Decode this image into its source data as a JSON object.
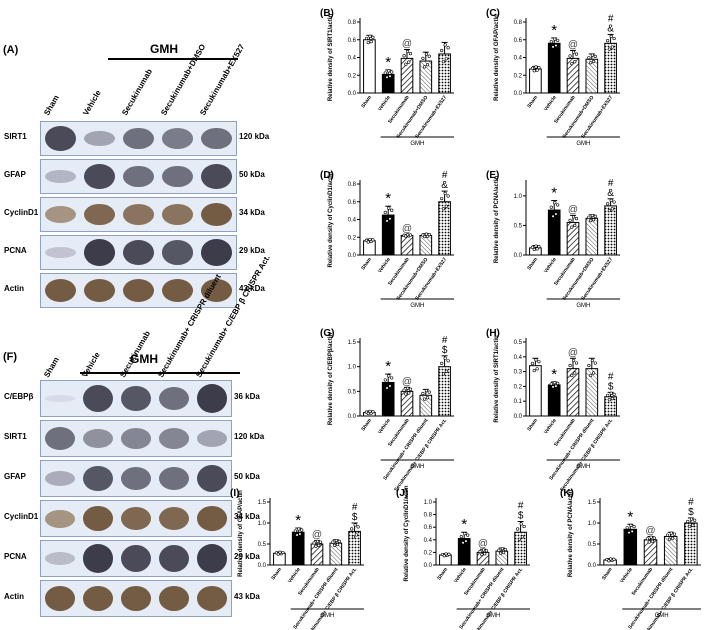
{
  "top": {
    "panel_A": "(A)",
    "gmh": "GMH",
    "lanes": [
      "Sham",
      "Vehicle",
      "Secukinumab",
      "Secukinumab+DMSO",
      "Secukinumab+EX527"
    ],
    "blots": [
      {
        "name": "SIRT1",
        "kda": "120 kDa",
        "intensity": [
          0.85,
          0.45,
          0.7,
          0.65,
          0.7
        ]
      },
      {
        "name": "GFAP",
        "kda": "50 kDa",
        "intensity": [
          0.35,
          0.85,
          0.7,
          0.7,
          0.85
        ]
      },
      {
        "name": "CyclinD1",
        "kda": "34 kDa",
        "intensity": [
          0.5,
          0.7,
          0.65,
          0.65,
          0.75
        ]
      },
      {
        "name": "PCNA",
        "kda": "29 kDa",
        "intensity": [
          0.25,
          0.9,
          0.85,
          0.8,
          0.9
        ]
      },
      {
        "name": "Actin",
        "kda": "43 kDa",
        "intensity": [
          0.75,
          0.75,
          0.75,
          0.75,
          0.75
        ]
      }
    ]
  },
  "bottom": {
    "panel_F": "(F)",
    "gmh": "GMH",
    "lanes": [
      "Sham",
      "Vehicle",
      "Secukinumab",
      "Secukinumab+ CRISPR diluent",
      "Secukinumab+ C/EBP β CRISPR Act."
    ],
    "blots": [
      {
        "name": "C/EBPβ",
        "kda": "36 kDa",
        "intensity": [
          0.05,
          0.85,
          0.8,
          0.7,
          0.9
        ]
      },
      {
        "name": "SIRT1",
        "kda": "120 kDa",
        "intensity": [
          0.7,
          0.55,
          0.6,
          0.6,
          0.45
        ]
      },
      {
        "name": "GFAP",
        "kda": "50 kDa",
        "intensity": [
          0.4,
          0.8,
          0.7,
          0.7,
          0.85
        ]
      },
      {
        "name": "CyclinD1",
        "kda": "34 kDa",
        "intensity": [
          0.5,
          0.75,
          0.7,
          0.7,
          0.75
        ]
      },
      {
        "name": "PCNA",
        "kda": "29 kDa",
        "intensity": [
          0.3,
          0.9,
          0.85,
          0.85,
          0.9
        ]
      },
      {
        "name": "Actin",
        "kda": "43 kDa",
        "intensity": [
          0.75,
          0.75,
          0.75,
          0.75,
          0.75
        ]
      }
    ]
  },
  "chart_data": [
    {
      "type": "bar",
      "panel": "(B)",
      "ylabel": "Relative density of SIRT1/actin",
      "ylim": [
        0,
        0.8
      ],
      "yticks": [
        "0.0",
        "0.2",
        "0.4",
        "0.6",
        "0.8"
      ],
      "categories": [
        "Sham",
        "Vehicle",
        "Secukinumab",
        "Secukinumab+DMSO",
        "Secukinumab+EX527"
      ],
      "values": [
        0.6,
        0.21,
        0.39,
        0.36,
        0.44
      ],
      "errors": [
        0.05,
        0.05,
        0.1,
        0.1,
        0.13
      ],
      "marks": [
        "",
        "*",
        "@",
        "",
        ""
      ],
      "group_label": "GMH"
    },
    {
      "type": "bar",
      "panel": "(C)",
      "ylabel": "Relative density of GFAP/actin",
      "ylim": [
        0,
        0.8
      ],
      "yticks": [
        "0.0",
        "0.2",
        "0.4",
        "0.6",
        "0.8"
      ],
      "categories": [
        "Sham",
        "Vehicle",
        "Secukinumab",
        "Secukinumab+DMSO",
        "Secukinumab+EX527"
      ],
      "values": [
        0.27,
        0.56,
        0.39,
        0.38,
        0.56
      ],
      "errors": [
        0.03,
        0.06,
        0.09,
        0.06,
        0.1
      ],
      "marks": [
        "",
        "*",
        "@",
        "",
        "#\n&"
      ],
      "group_label": "GMH"
    },
    {
      "type": "bar",
      "panel": "(D)",
      "ylabel": "Relative density of CyclinD1/actin",
      "ylim": [
        0,
        0.8
      ],
      "yticks": [
        "0.0",
        "0.2",
        "0.4",
        "0.6",
        "0.8"
      ],
      "categories": [
        "Sham",
        "Vehicle",
        "Secukinumab",
        "Secukinumab+DMSO",
        "Secukinumab+EX527"
      ],
      "values": [
        0.16,
        0.45,
        0.22,
        0.22,
        0.6
      ],
      "errors": [
        0.02,
        0.1,
        0.01,
        0.02,
        0.12
      ],
      "marks": [
        "",
        "*",
        "@",
        "",
        "#\n&"
      ],
      "group_label": "GMH"
    },
    {
      "type": "bar",
      "panel": "(E)",
      "ylabel": "Relative density of PCNA/actin",
      "ylim": [
        0,
        1.2
      ],
      "yticks": [
        "0.0",
        "0.5",
        "1.0"
      ],
      "categories": [
        "Sham",
        "Vehicle",
        "Secukinumab",
        "Secukinumab+DMSO",
        "Secukinumab+EX527"
      ],
      "values": [
        0.12,
        0.76,
        0.55,
        0.62,
        0.83
      ],
      "errors": [
        0.04,
        0.16,
        0.12,
        0.06,
        0.12
      ],
      "marks": [
        "",
        "*",
        "@",
        "",
        "#\n&"
      ],
      "group_label": "GMH"
    },
    {
      "type": "bar",
      "panel": "(G)",
      "ylabel": "Relative density of C/EBPβ/actin",
      "ylim": [
        0,
        1.5
      ],
      "yticks": [
        "0.0",
        "0.5",
        "1.0",
        "1.5"
      ],
      "categories": [
        "Sham",
        "Vehicle",
        "Secukinumab",
        "Secukinumab+ CRISPR diluent",
        "Secukinumab+ C/EBP β CRISPR Act."
      ],
      "values": [
        0.07,
        0.68,
        0.5,
        0.42,
        1.0
      ],
      "errors": [
        0.03,
        0.17,
        0.08,
        0.12,
        0.22
      ],
      "marks": [
        "",
        "*",
        "@",
        "",
        "#\n$"
      ],
      "group_label": "GMH"
    },
    {
      "type": "bar",
      "panel": "(H)",
      "ylabel": "Relative density of SIRT1/actin",
      "ylim": [
        0,
        0.5
      ],
      "yticks": [
        "0.0",
        "0.1",
        "0.2",
        "0.3",
        "0.4",
        "0.5"
      ],
      "categories": [
        "Sham",
        "Vehicle",
        "Secukinumab",
        "Secukinumab+ CRISPR diluent",
        "Secukinumab+ C/EBP β CRISPR Act."
      ],
      "values": [
        0.34,
        0.21,
        0.32,
        0.32,
        0.13
      ],
      "errors": [
        0.05,
        0.02,
        0.07,
        0.07,
        0.03
      ],
      "marks": [
        "",
        "*",
        "@",
        "",
        "#\n$"
      ],
      "group_label": "GMH"
    },
    {
      "type": "bar",
      "panel": "(I)",
      "ylabel": "Relative density of GFAP/actin",
      "ylim": [
        0,
        1.5
      ],
      "yticks": [
        "0.0",
        "0.5",
        "1.0",
        "1.5"
      ],
      "categories": [
        "Sham",
        "Vehicle",
        "Secukinumab",
        "Secukinumab+ CRISPR diluent",
        "Secukinumab+ C/EBP β CRISPR Act."
      ],
      "values": [
        0.28,
        0.78,
        0.5,
        0.52,
        0.8
      ],
      "errors": [
        0.03,
        0.1,
        0.08,
        0.08,
        0.2
      ],
      "marks": [
        "",
        "*",
        "@",
        "",
        "#\n$"
      ],
      "group_label": "GMH"
    },
    {
      "type": "bar",
      "panel": "(J)",
      "ylabel": "Relative density of CyclinD1/actin",
      "ylim": [
        0,
        1.0
      ],
      "yticks": [
        "0.0",
        "0.2",
        "0.4",
        "0.6",
        "0.8",
        "1.0"
      ],
      "categories": [
        "Sham",
        "Vehicle",
        "Secukinumab",
        "Secukinumab+ CRISPR diluent",
        "Secukinumab+ C/EBP β CRISPR Act."
      ],
      "values": [
        0.16,
        0.42,
        0.2,
        0.22,
        0.52
      ],
      "errors": [
        0.02,
        0.1,
        0.05,
        0.05,
        0.17
      ],
      "marks": [
        "",
        "*",
        "@",
        "",
        "#\n$"
      ],
      "group_label": "GMH"
    },
    {
      "type": "bar",
      "panel": "(K)",
      "ylabel": "Relative density of PCNA/actin",
      "ylim": [
        0,
        1.5
      ],
      "yticks": [
        "0.0",
        "0.5",
        "1.0",
        "1.5"
      ],
      "categories": [
        "Sham",
        "Vehicle",
        "Secukinumab",
        "Secukinumab+ CRISPR diluent",
        "Secukinumab+ C/EBP β CRISPR Act."
      ],
      "values": [
        0.12,
        0.85,
        0.6,
        0.68,
        1.0
      ],
      "errors": [
        0.03,
        0.12,
        0.08,
        0.1,
        0.12
      ],
      "marks": [
        "",
        "*",
        "@",
        "",
        "#\n$"
      ],
      "group_label": "GMH"
    }
  ]
}
